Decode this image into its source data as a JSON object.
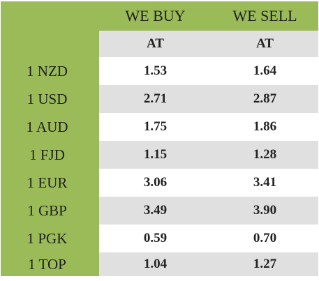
{
  "headers": {
    "buy": "WE BUY",
    "sell": "WE SELL"
  },
  "subheaders": {
    "buy": "AT",
    "sell": "AT"
  },
  "rows": [
    {
      "currency": "1 NZD",
      "buy": "1.53",
      "sell": "1.64"
    },
    {
      "currency": "1 USD",
      "buy": "2.71",
      "sell": "2.87"
    },
    {
      "currency": "1 AUD",
      "buy": "1.75",
      "sell": "1.86"
    },
    {
      "currency": "1 FJD",
      "buy": "1.15",
      "sell": "1.28"
    },
    {
      "currency": "1 EUR",
      "buy": "3.06",
      "sell": "3.41"
    },
    {
      "currency": "1 GBP",
      "buy": "3.49",
      "sell": "3.90"
    },
    {
      "currency": "1 PGK",
      "buy": "0.59",
      "sell": "0.70"
    },
    {
      "currency": "1 TOP",
      "buy": "1.04",
      "sell": "1.27"
    }
  ],
  "colors": {
    "green": "#9bbb59",
    "gray": "#e0e0e0",
    "white": "#ffffff"
  }
}
